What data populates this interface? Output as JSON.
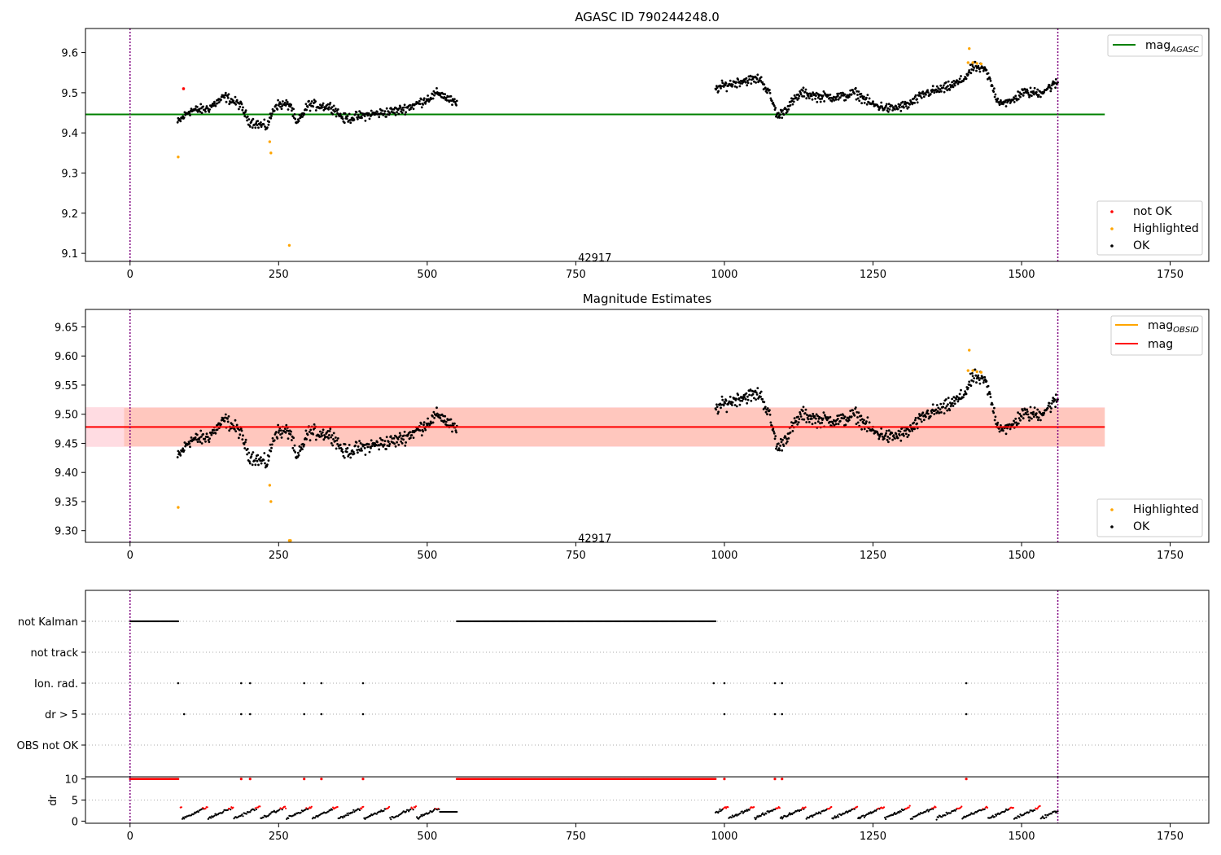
{
  "colors": {
    "ok": "#000000",
    "not_ok": "#ff0000",
    "highlighted": "#ffa500",
    "agasc_line": "#008000",
    "mag_line": "#ff0000",
    "obsid_line": "#ffa500",
    "band_outer": "#ffc0cb",
    "band_inner": "#ffa07a",
    "vline": "#800080"
  },
  "chart_data": [
    {
      "id": "agasc",
      "type": "scatter",
      "title": "AGASC ID 790244248.0",
      "xlim": [
        -75,
        1815
      ],
      "ylim": [
        9.08,
        9.66
      ],
      "xticks": [
        "0",
        "250",
        "500",
        "750",
        "1000",
        "1250",
        "1500",
        "1750"
      ],
      "xtick_values": [
        0,
        250,
        500,
        750,
        1000,
        1250,
        1500,
        1750
      ],
      "yticks": [
        "9.1",
        "9.2",
        "9.3",
        "9.4",
        "9.5",
        "9.6"
      ],
      "ytick_values": [
        9.1,
        9.2,
        9.3,
        9.4,
        9.5,
        9.6
      ],
      "obsid_label": "42917",
      "obsid_label_x": 782,
      "obsid_label_y": 9.09,
      "vlines": [
        0,
        1561
      ],
      "mag_agasc": 9.446,
      "line_xrange": [
        -75,
        1640
      ],
      "segments": [
        {
          "x0": 80,
          "x1": 550,
          "keys": [
            [
              80,
              9.425
            ],
            [
              100,
              9.455
            ],
            [
              130,
              9.46
            ],
            [
              160,
              9.49
            ],
            [
              185,
              9.47
            ],
            [
              200,
              9.43
            ],
            [
              230,
              9.415
            ],
            [
              245,
              9.47
            ],
            [
              270,
              9.47
            ],
            [
              280,
              9.42
            ],
            [
              300,
              9.47
            ],
            [
              340,
              9.465
            ],
            [
              360,
              9.435
            ],
            [
              400,
              9.445
            ],
            [
              450,
              9.455
            ],
            [
              480,
              9.47
            ],
            [
              520,
              9.5
            ],
            [
              550,
              9.47
            ]
          ]
        },
        {
          "x0": 985,
          "x1": 1561,
          "keys": [
            [
              985,
              9.51
            ],
            [
              1005,
              9.52
            ],
            [
              1030,
              9.53
            ],
            [
              1060,
              9.535
            ],
            [
              1075,
              9.5
            ],
            [
              1090,
              9.44
            ],
            [
              1110,
              9.47
            ],
            [
              1130,
              9.5
            ],
            [
              1160,
              9.49
            ],
            [
              1200,
              9.49
            ],
            [
              1220,
              9.5
            ],
            [
              1250,
              9.47
            ],
            [
              1280,
              9.46
            ],
            [
              1310,
              9.47
            ],
            [
              1340,
              9.5
            ],
            [
              1370,
              9.51
            ],
            [
              1400,
              9.53
            ],
            [
              1420,
              9.565
            ],
            [
              1440,
              9.555
            ],
            [
              1460,
              9.48
            ],
            [
              1480,
              9.475
            ],
            [
              1500,
              9.5
            ],
            [
              1530,
              9.5
            ],
            [
              1561,
              9.525
            ]
          ]
        }
      ],
      "highlighted_points": [
        [
          81,
          9.34
        ],
        [
          235,
          9.378
        ],
        [
          237,
          9.35
        ],
        [
          268,
          9.12
        ],
        [
          1410,
          9.575
        ],
        [
          1412,
          9.61
        ],
        [
          1418,
          9.575
        ],
        [
          1425,
          9.573
        ],
        [
          1432,
          9.572
        ]
      ],
      "not_ok_points": [
        [
          90,
          9.51
        ]
      ],
      "legend_upper": [
        {
          "label": "mag",
          "sub": "AGASC",
          "color": "#008000"
        }
      ],
      "legend_lower": [
        {
          "label": "not OK",
          "color": "#ff0000"
        },
        {
          "label": "Highlighted",
          "color": "#ffa500"
        },
        {
          "label": "OK",
          "color": "#000000"
        }
      ]
    },
    {
      "id": "estimates",
      "type": "scatter",
      "title": "Magnitude Estimates",
      "xlim": [
        -75,
        1815
      ],
      "ylim": [
        9.28,
        9.68
      ],
      "xticks": [
        "0",
        "250",
        "500",
        "750",
        "1000",
        "1250",
        "1500",
        "1750"
      ],
      "xtick_values": [
        0,
        250,
        500,
        750,
        1000,
        1250,
        1500,
        1750
      ],
      "yticks": [
        "9.30",
        "9.35",
        "9.40",
        "9.45",
        "9.50",
        "9.55",
        "9.60",
        "9.65"
      ],
      "ytick_values": [
        9.3,
        9.35,
        9.4,
        9.45,
        9.5,
        9.55,
        9.6,
        9.65
      ],
      "obsid_label": "42917",
      "obsid_label_x": 782,
      "obsid_label_y": 9.288,
      "vlines": [
        0,
        1561
      ],
      "mag": 9.478,
      "band_outer": [
        9.444,
        9.512
      ],
      "band_inner": [
        9.445,
        9.511
      ],
      "line_xrange": [
        -75,
        1640
      ],
      "segments": [
        {
          "x0": 80,
          "x1": 550,
          "keys": [
            [
              80,
              9.425
            ],
            [
              100,
              9.455
            ],
            [
              130,
              9.46
            ],
            [
              160,
              9.49
            ],
            [
              185,
              9.47
            ],
            [
              200,
              9.43
            ],
            [
              230,
              9.415
            ],
            [
              245,
              9.47
            ],
            [
              270,
              9.47
            ],
            [
              280,
              9.42
            ],
            [
              300,
              9.47
            ],
            [
              340,
              9.465
            ],
            [
              360,
              9.435
            ],
            [
              400,
              9.445
            ],
            [
              450,
              9.455
            ],
            [
              480,
              9.47
            ],
            [
              520,
              9.5
            ],
            [
              550,
              9.47
            ]
          ]
        },
        {
          "x0": 985,
          "x1": 1561,
          "keys": [
            [
              985,
              9.51
            ],
            [
              1005,
              9.52
            ],
            [
              1030,
              9.53
            ],
            [
              1060,
              9.535
            ],
            [
              1075,
              9.5
            ],
            [
              1090,
              9.44
            ],
            [
              1110,
              9.47
            ],
            [
              1130,
              9.5
            ],
            [
              1160,
              9.49
            ],
            [
              1200,
              9.49
            ],
            [
              1220,
              9.5
            ],
            [
              1250,
              9.47
            ],
            [
              1280,
              9.46
            ],
            [
              1310,
              9.47
            ],
            [
              1340,
              9.5
            ],
            [
              1370,
              9.51
            ],
            [
              1400,
              9.53
            ],
            [
              1420,
              9.565
            ],
            [
              1440,
              9.555
            ],
            [
              1460,
              9.48
            ],
            [
              1480,
              9.475
            ],
            [
              1500,
              9.5
            ],
            [
              1530,
              9.5
            ],
            [
              1561,
              9.525
            ]
          ]
        }
      ],
      "highlighted_points": [
        [
          81,
          9.34
        ],
        [
          235,
          9.378
        ],
        [
          237,
          9.35
        ],
        [
          268,
          9.283
        ],
        [
          270,
          9.283
        ],
        [
          1410,
          9.575
        ],
        [
          1412,
          9.61
        ],
        [
          1418,
          9.575
        ],
        [
          1425,
          9.573
        ],
        [
          1432,
          9.572
        ]
      ],
      "legend_upper": [
        {
          "label": "mag",
          "sub": "OBSID",
          "color": "#ffa500"
        },
        {
          "label": "mag",
          "sub": "",
          "color": "#ff0000"
        }
      ],
      "legend_lower": [
        {
          "label": "Highlighted",
          "color": "#ffa500"
        },
        {
          "label": "OK",
          "color": "#000000"
        }
      ]
    },
    {
      "id": "flags",
      "type": "scatter",
      "xlim": [
        -75,
        1815
      ],
      "categories": [
        "not Kalman",
        "not track",
        "Ion. rad.",
        "dr > 5",
        "OBS not OK"
      ],
      "vlines": [
        0,
        1561
      ],
      "not_kalman_ranges": [
        [
          0,
          82
        ],
        [
          550,
          985
        ]
      ],
      "ion_rad_x": [
        81,
        187,
        202,
        293,
        322,
        392,
        982,
        1000,
        1085,
        1097,
        1407
      ],
      "dr5_x": [
        91,
        187,
        202,
        293,
        322,
        392,
        1000,
        1085,
        1097,
        1407
      ]
    },
    {
      "id": "dr",
      "type": "scatter",
      "xlim": [
        -75,
        1815
      ],
      "ylim": [
        -0.5,
        10.5
      ],
      "ylabel": "dr",
      "xticks": [
        "0",
        "250",
        "500",
        "750",
        "1000",
        "1250",
        "1500",
        "1750"
      ],
      "xtick_values": [
        0,
        250,
        500,
        750,
        1000,
        1250,
        1500,
        1750
      ],
      "yticks": [
        "0",
        "5",
        "10"
      ],
      "ytick_values": [
        0,
        5,
        10
      ],
      "vlines": [
        0,
        1561
      ],
      "capped_ranges": [
        [
          0,
          82
        ],
        [
          550,
          985
        ]
      ],
      "capped_points": [
        187,
        202,
        293,
        322,
        392,
        1000,
        1085,
        1097,
        1407
      ],
      "segments": [
        [
          85,
          550
        ],
        [
          985,
          1561
        ]
      ]
    }
  ]
}
